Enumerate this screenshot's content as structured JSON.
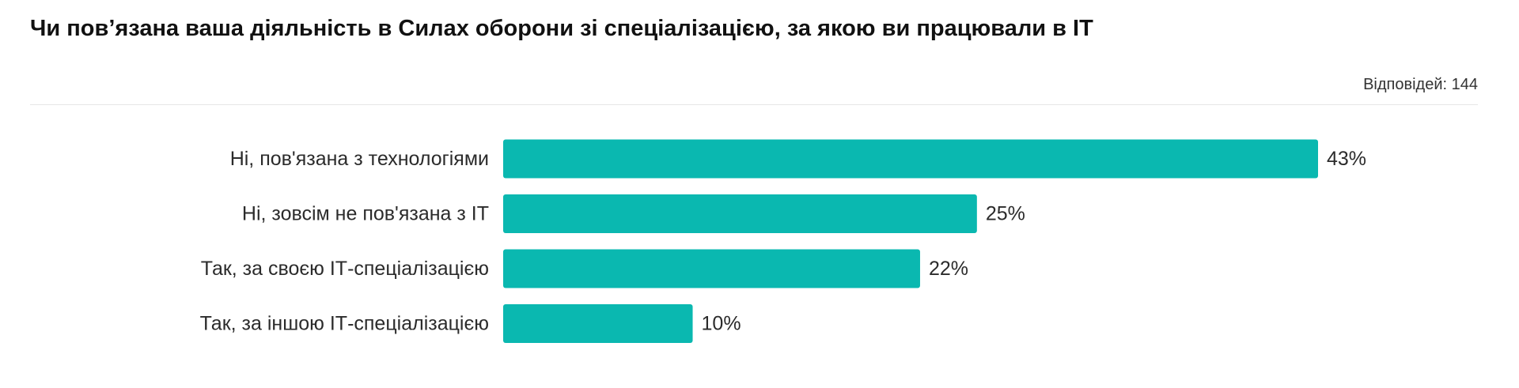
{
  "header": {
    "title": "Чи пов’язана ваша діяльність в Силах оборони зі спеціалізацією, за якою ви працювали в ІТ",
    "responses_label": "Відповідей: 144"
  },
  "chart_data": {
    "type": "bar",
    "orientation": "horizontal",
    "title": "Чи пов’язана ваша діяльність в Силах оборони зі спеціалізацією, за якою ви працювали в ІТ",
    "categories": [
      "Ні, пов'язана з технологіями",
      "Ні, зовсім не пов'язана з ІТ",
      "Так, за своєю ІТ-спеціалізацією",
      "Так, за іншою ІТ-спеціалізацією"
    ],
    "values": [
      43,
      25,
      22,
      10
    ],
    "value_labels": [
      "43%",
      "25%",
      "22%",
      "10%"
    ],
    "unit": "%",
    "bar_color": "#0ab8b0",
    "grid": false,
    "legend": "none"
  }
}
